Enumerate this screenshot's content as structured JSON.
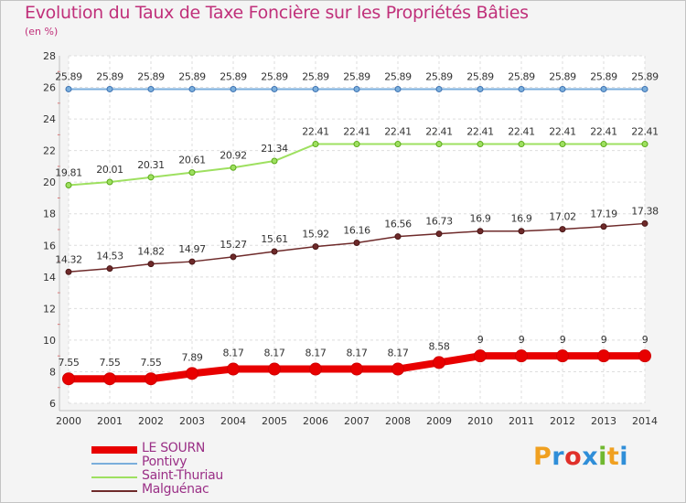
{
  "title": "Evolution du Taux de Taxe Foncière sur les Propriétés Bâties",
  "unit": "(en %)",
  "brand": {
    "letters": [
      "P",
      "r",
      "o",
      "x",
      "i",
      "t",
      "i"
    ],
    "colors": [
      "#f0a020",
      "#2f8ed8",
      "#e0302a",
      "#2f8ed8",
      "#70b830",
      "#f0a020",
      "#2f8ed8"
    ]
  },
  "chart_data": {
    "type": "line",
    "title": "Evolution du Taux de Taxe Foncière sur les Propriétés Bâties",
    "ylabel": "(en %)",
    "xlabel": "",
    "x": [
      "2000",
      "2001",
      "2002",
      "2003",
      "2004",
      "2005",
      "2006",
      "2007",
      "2008",
      "2009",
      "2010",
      "2011",
      "2012",
      "2013",
      "2014"
    ],
    "ylim": [
      6,
      28
    ],
    "yticks": [
      "6",
      "8",
      "10",
      "12",
      "14",
      "16",
      "18",
      "20",
      "22",
      "24",
      "26",
      "28"
    ],
    "grid": true,
    "legend_position": "bottom-left",
    "series": [
      {
        "name": "LE SOURN",
        "color": "#e80000",
        "values": [
          7.55,
          7.55,
          7.55,
          7.89,
          8.17,
          8.17,
          8.17,
          8.17,
          8.17,
          8.58,
          9,
          9,
          9,
          9,
          9
        ],
        "labels": [
          "7.55",
          "7.55",
          "7.55",
          "7.89",
          "8.17",
          "8.17",
          "8.17",
          "8.17",
          "8.17",
          "8.58",
          "9",
          "9",
          "9",
          "9",
          "9"
        ]
      },
      {
        "name": "Pontivy",
        "color": "#7aaedc",
        "values": [
          25.89,
          25.89,
          25.89,
          25.89,
          25.89,
          25.89,
          25.89,
          25.89,
          25.89,
          25.89,
          25.89,
          25.89,
          25.89,
          25.89,
          25.89
        ],
        "labels": [
          "25.89",
          "25.89",
          "25.89",
          "25.89",
          "25.89",
          "25.89",
          "25.89",
          "25.89",
          "25.89",
          "25.89",
          "25.89",
          "25.89",
          "25.89",
          "25.89",
          "25.89"
        ]
      },
      {
        "name": "Saint-Thuriau",
        "color": "#9ee060",
        "values": [
          19.81,
          20.01,
          20.31,
          20.61,
          20.92,
          21.34,
          22.41,
          22.41,
          22.41,
          22.41,
          22.41,
          22.41,
          22.41,
          22.41,
          22.41
        ],
        "labels": [
          "19.81",
          "20.01",
          "20.31",
          "20.61",
          "20.92",
          "21.34",
          "22.41",
          "22.41",
          "22.41",
          "22.41",
          "22.41",
          "22.41",
          "22.41",
          "22.41",
          "22.41"
        ]
      },
      {
        "name": "Malguénac",
        "color": "#6e2a2a",
        "values": [
          14.32,
          14.53,
          14.82,
          14.97,
          15.27,
          15.61,
          15.92,
          16.16,
          16.56,
          16.73,
          16.9,
          16.9,
          17.02,
          17.19,
          17.38
        ],
        "labels": [
          "14.32",
          "14.53",
          "14.82",
          "14.97",
          "15.27",
          "15.61",
          "15.92",
          "16.16",
          "16.56",
          "16.73",
          "16.9",
          "16.9",
          "17.02",
          "17.19",
          "17.38"
        ]
      }
    ]
  }
}
